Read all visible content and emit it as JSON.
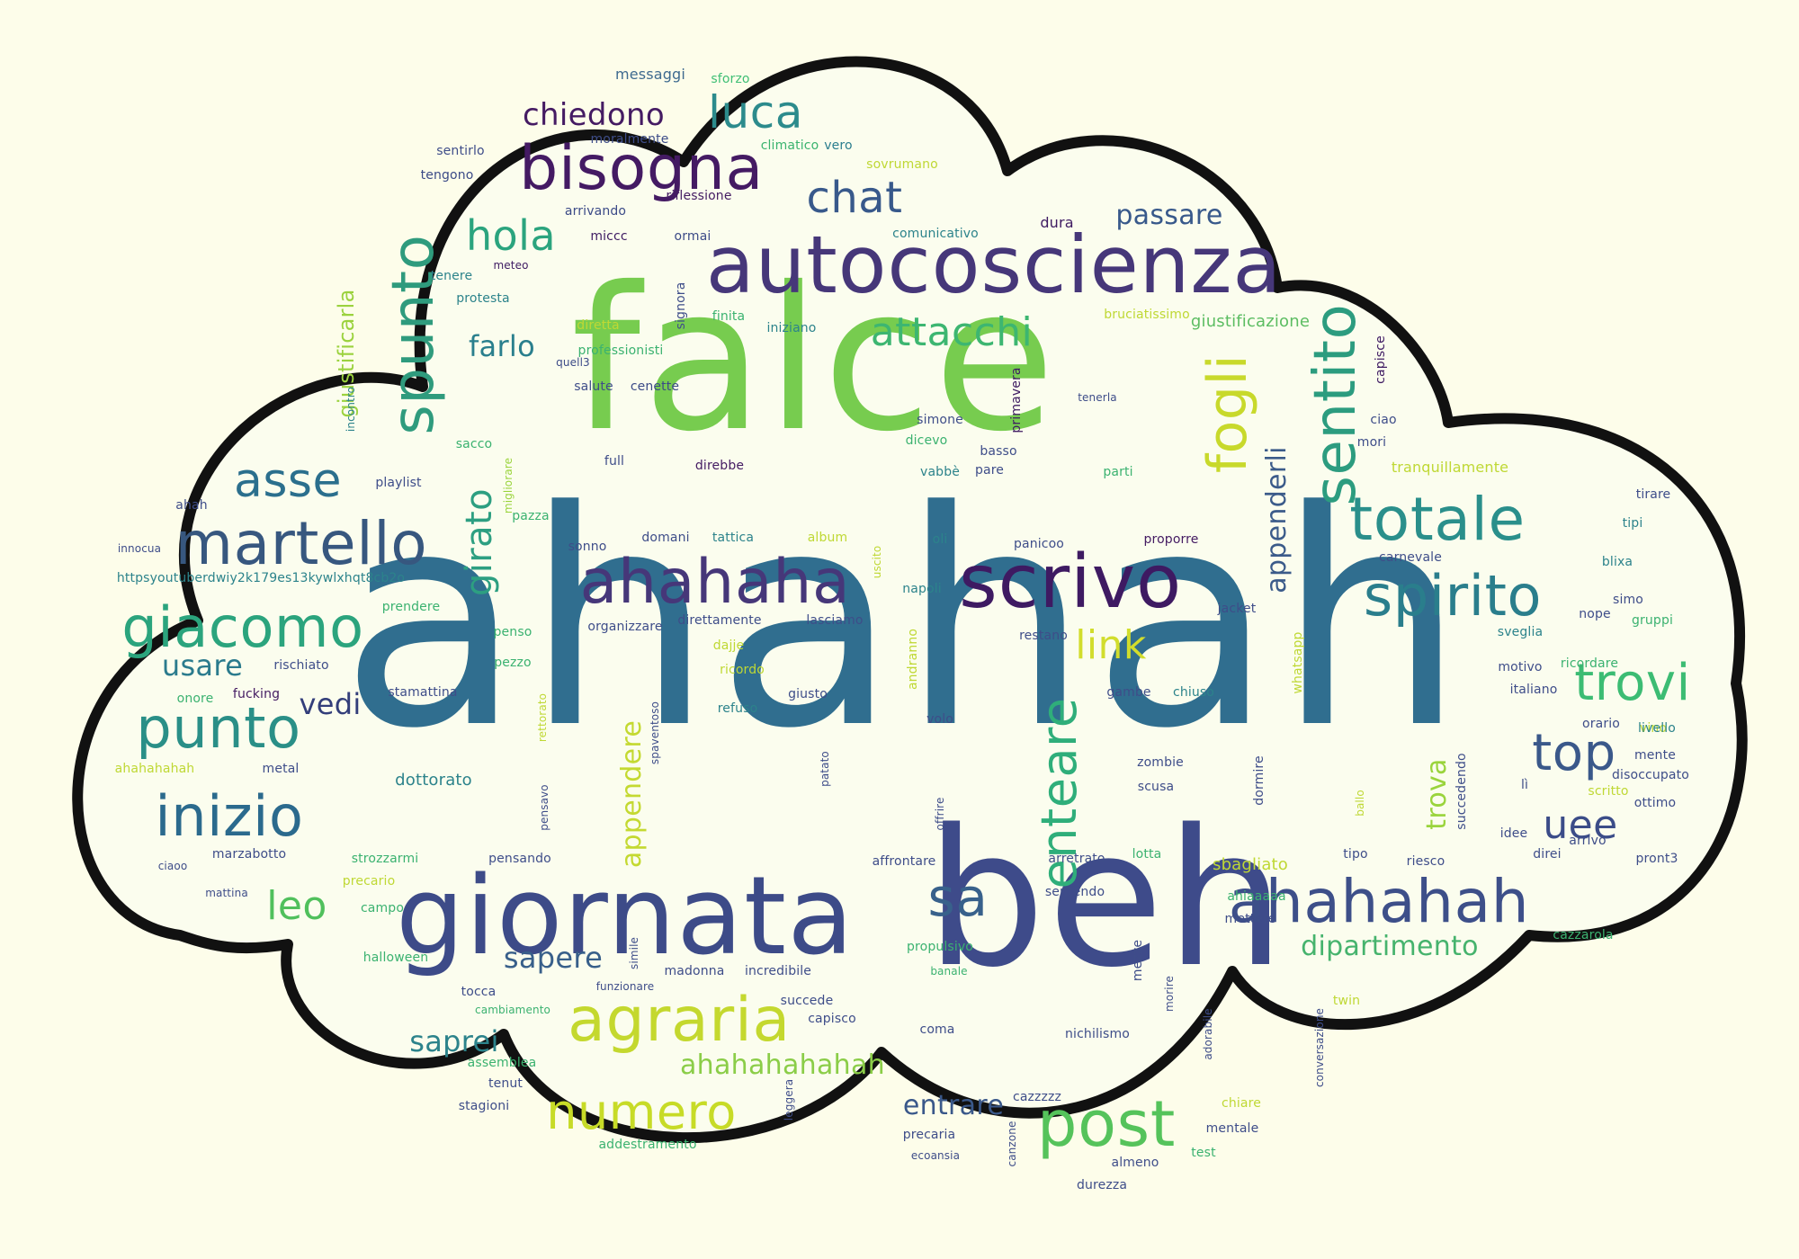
{
  "colors": {
    "background": "#fdfdea",
    "cloud_fill": "#fbfdee",
    "cloud_stroke": "#111111"
  },
  "words": [
    {
      "t": "ahahah",
      "c": "#306e8f"
    },
    {
      "t": "falce",
      "c": "#77cc4f"
    },
    {
      "t": "beh",
      "c": "#3e4b8a"
    },
    {
      "t": "giornata",
      "c": "#3d4b88"
    },
    {
      "t": "autocoscienza",
      "c": "#463779"
    },
    {
      "t": "ahahaha",
      "c": "#463779"
    },
    {
      "t": "scrivo",
      "c": "#3e1a62"
    },
    {
      "t": "bisogna",
      "c": "#441a63"
    },
    {
      "t": "martello",
      "c": "#37577f"
    },
    {
      "t": "giacomo",
      "c": "#2ba47d"
    },
    {
      "t": "agraria",
      "c": "#c4d82e"
    },
    {
      "t": "ahahahah",
      "c": "#3d4f89"
    },
    {
      "t": "spirito",
      "c": "#2a7e8c"
    },
    {
      "t": "totale",
      "c": "#2a8f8b"
    },
    {
      "t": "sentito",
      "c": "#2c9c7f"
    },
    {
      "t": "spunto",
      "c": "#2f9b7d"
    },
    {
      "t": "punto",
      "c": "#2a8f87"
    },
    {
      "t": "inizio",
      "c": "#2b6a8d"
    },
    {
      "t": "post",
      "c": "#55c35b"
    },
    {
      "t": "numero",
      "c": "#c7db27"
    },
    {
      "t": "trovi",
      "c": "#3cbc73"
    },
    {
      "t": "top",
      "c": "#3a588a"
    },
    {
      "t": "sa",
      "c": "#38618b"
    },
    {
      "t": "fogli",
      "c": "#c8d92b"
    },
    {
      "t": "luca",
      "c": "#2c8b8c"
    },
    {
      "t": "chat",
      "c": "#38598b"
    },
    {
      "t": "hola",
      "c": "#2ba47e"
    },
    {
      "t": "attacchi",
      "c": "#3db671"
    },
    {
      "t": "chiedono",
      "c": "#451b63"
    },
    {
      "t": "asse",
      "c": "#2b6f8d"
    },
    {
      "t": "enteare",
      "c": "#2fae7a"
    },
    {
      "t": "girato",
      "c": "#2d9f81"
    },
    {
      "t": "link",
      "c": "#d2dd2c"
    },
    {
      "t": "leo",
      "c": "#50c05c"
    },
    {
      "t": "uee",
      "c": "#3b4c88"
    },
    {
      "t": "ahahahahahah",
      "c": "#8bcd48"
    },
    {
      "t": "dipartimento",
      "c": "#46b36d"
    },
    {
      "t": "sapere",
      "c": "#385f8a"
    },
    {
      "t": "saprei",
      "c": "#2c838b"
    },
    {
      "t": "usare",
      "c": "#2b7b8d"
    },
    {
      "t": "vedi",
      "c": "#333e7a"
    },
    {
      "t": "passare",
      "c": "#38598b"
    },
    {
      "t": "farlo",
      "c": "#2a7f8d"
    },
    {
      "t": "entrare",
      "c": "#3a588a"
    },
    {
      "t": "appenderli",
      "c": "#3b5b8a"
    },
    {
      "t": "appendere",
      "c": "#c4d931"
    },
    {
      "t": "trova",
      "c": "#9ad43c"
    },
    {
      "t": "giustificarla",
      "c": "#9bd23e"
    },
    {
      "t": "giustificazione",
      "c": "#5cbd62"
    },
    {
      "t": "messaggi",
      "c": "#3e6a8f"
    },
    {
      "t": "sforzo",
      "c": "#3fbf75"
    },
    {
      "t": "moralmente",
      "c": "#3e4d89"
    },
    {
      "t": "sentirlo",
      "c": "#3e4d89"
    },
    {
      "t": "climatico",
      "c": "#3ab36e"
    },
    {
      "t": "vero",
      "c": "#2b7e8e"
    },
    {
      "t": "sovrumano",
      "c": "#bfd834"
    },
    {
      "t": "tengono",
      "c": "#3b4a87"
    },
    {
      "t": "arrivando",
      "c": "#3b4a87"
    },
    {
      "t": "riflessione",
      "c": "#441b62"
    },
    {
      "t": "miccc",
      "c": "#3e1a62"
    },
    {
      "t": "ormai",
      "c": "#3b4a87"
    },
    {
      "t": "comunicativo",
      "c": "#2c838b"
    },
    {
      "t": "dura",
      "c": "#3e1a62"
    },
    {
      "t": "meteo",
      "c": "#3e1a62"
    },
    {
      "t": "tenere",
      "c": "#2c838b"
    },
    {
      "t": "signora",
      "c": "#3e4d89"
    },
    {
      "t": "protesta",
      "c": "#2c838b"
    },
    {
      "t": "diretta",
      "c": "#bfd834"
    },
    {
      "t": "finita",
      "c": "#3bb270"
    },
    {
      "t": "iniziano",
      "c": "#2c838b"
    },
    {
      "t": "bruciatissimo",
      "c": "#bfd834"
    },
    {
      "t": "professionisti",
      "c": "#3bb270"
    },
    {
      "t": "quell3",
      "c": "#3b4a87"
    },
    {
      "t": "salute",
      "c": "#3e4d89"
    },
    {
      "t": "cenette",
      "c": "#3b4a87"
    },
    {
      "t": "primavera",
      "c": "#3e1a62"
    },
    {
      "t": "simone",
      "c": "#3e4d89"
    },
    {
      "t": "tenerla",
      "c": "#3e4d89"
    },
    {
      "t": "capisce",
      "c": "#3e1a62"
    },
    {
      "t": "incontro",
      "c": "#2c838b"
    },
    {
      "t": "sacco",
      "c": "#3bb270"
    },
    {
      "t": "migliorare",
      "c": "#9ad43c"
    },
    {
      "t": "dicevo",
      "c": "#3bb270"
    },
    {
      "t": "basso",
      "c": "#3e4d89"
    },
    {
      "t": "ciao",
      "c": "#3e4d89"
    },
    {
      "t": "mori",
      "c": "#3e4d89"
    },
    {
      "t": "playlist",
      "c": "#3e4d89"
    },
    {
      "t": "full",
      "c": "#3e4d89"
    },
    {
      "t": "direbbe",
      "c": "#441b62"
    },
    {
      "t": "vabbè",
      "c": "#2c838b"
    },
    {
      "t": "pare",
      "c": "#3e4d89"
    },
    {
      "t": "parti",
      "c": "#3bb270"
    },
    {
      "t": "tranquillamente",
      "c": "#bfd834"
    },
    {
      "t": "ahah",
      "c": "#3e4d89"
    },
    {
      "t": "pazza",
      "c": "#3bb270"
    },
    {
      "t": "tirare",
      "c": "#3e4d89"
    },
    {
      "t": "tipi",
      "c": "#2c838b"
    },
    {
      "t": "innocua",
      "c": "#3e4d89"
    },
    {
      "t": "sonno",
      "c": "#3e4d89"
    },
    {
      "t": "domani",
      "c": "#3e4d89"
    },
    {
      "t": "tattica",
      "c": "#2c838b"
    },
    {
      "t": "album",
      "c": "#bfd834"
    },
    {
      "t": "oli",
      "c": "#2c838b"
    },
    {
      "t": "panicoo",
      "c": "#3e4d89"
    },
    {
      "t": "proporre",
      "c": "#441b62"
    },
    {
      "t": "carnevale",
      "c": "#3e4d89"
    },
    {
      "t": "blixa",
      "c": "#2c838b"
    },
    {
      "t": "httpsyoutuberdwiy2k179es13kywlxhqt8cb2o",
      "c": "#2c838b"
    },
    {
      "t": "uscito",
      "c": "#bfd834"
    },
    {
      "t": "napoli",
      "c": "#2c838b"
    },
    {
      "t": "prendere",
      "c": "#3bb270"
    },
    {
      "t": "jacket",
      "c": "#3e4d89"
    },
    {
      "t": "simo",
      "c": "#3e4d89"
    },
    {
      "t": "nope",
      "c": "#3e4d89"
    },
    {
      "t": "gruppi",
      "c": "#3bb270"
    },
    {
      "t": "organizzare",
      "c": "#3e4d89"
    },
    {
      "t": "direttamente",
      "c": "#3e4d89"
    },
    {
      "t": "lasciamo",
      "c": "#3e4d89"
    },
    {
      "t": "andranno",
      "c": "#bfd834"
    },
    {
      "t": "restano",
      "c": "#3e4d89"
    },
    {
      "t": "whatsapp",
      "c": "#bfd834"
    },
    {
      "t": "sveglia",
      "c": "#2c838b"
    },
    {
      "t": "penso",
      "c": "#3bb270"
    },
    {
      "t": "dajje",
      "c": "#bfd834"
    },
    {
      "t": "rischiato",
      "c": "#3e4d89"
    },
    {
      "t": "motivo",
      "c": "#3e4d89"
    },
    {
      "t": "pezzo",
      "c": "#3bb270"
    },
    {
      "t": "ricordo",
      "c": "#bfd834"
    },
    {
      "t": "italiano",
      "c": "#3e4d89"
    },
    {
      "t": "fucking",
      "c": "#441b62"
    },
    {
      "t": "stamattina",
      "c": "#3e4d89"
    },
    {
      "t": "onore",
      "c": "#3bb270"
    },
    {
      "t": "refuso",
      "c": "#2c838b"
    },
    {
      "t": "giusto",
      "c": "#3e4d89"
    },
    {
      "t": "gambe",
      "c": "#3e4d89"
    },
    {
      "t": "chiuso",
      "c": "#2c838b"
    },
    {
      "t": "rettorato",
      "c": "#bfd834"
    },
    {
      "t": "spaventoso",
      "c": "#3e4d89"
    },
    {
      "t": "volo",
      "c": "#3e4d89"
    },
    {
      "t": "vino",
      "c": "#bfd834"
    },
    {
      "t": "orario",
      "c": "#3e4d89"
    },
    {
      "t": "livello",
      "c": "#2c838b"
    },
    {
      "t": "ahahahahah",
      "c": "#bfd834"
    },
    {
      "t": "metal",
      "c": "#3e4d89"
    },
    {
      "t": "zombie",
      "c": "#3e4d89"
    },
    {
      "t": "mente",
      "c": "#3e4d89"
    },
    {
      "t": "disoccupato",
      "c": "#3e4d89"
    },
    {
      "t": "dottorato",
      "c": "#2c838b"
    },
    {
      "t": "patato",
      "c": "#3e4d89"
    },
    {
      "t": "scusa",
      "c": "#3e4d89"
    },
    {
      "t": "dormire",
      "c": "#3e4d89"
    },
    {
      "t": "succedendo",
      "c": "#3e4d89"
    },
    {
      "t": "lì",
      "c": "#3e4d89"
    },
    {
      "t": "scritto",
      "c": "#bfd834"
    },
    {
      "t": "ottimo",
      "c": "#3e4d89"
    },
    {
      "t": "pensavo",
      "c": "#3e4d89"
    },
    {
      "t": "offrire",
      "c": "#3e4d89"
    },
    {
      "t": "ballo",
      "c": "#bfd834"
    },
    {
      "t": "idee",
      "c": "#3e4d89"
    },
    {
      "t": "arrivo",
      "c": "#3e4d89"
    },
    {
      "t": "marzabotto",
      "c": "#3e4d89"
    },
    {
      "t": "ciaoo",
      "c": "#3e4d89"
    },
    {
      "t": "strozzarmi",
      "c": "#3bb270"
    },
    {
      "t": "pensando",
      "c": "#3e4d89"
    },
    {
      "t": "affrontare",
      "c": "#3e4d89"
    },
    {
      "t": "arretrato",
      "c": "#3e4d89"
    },
    {
      "t": "lotta",
      "c": "#3bb270"
    },
    {
      "t": "sbagliato",
      "c": "#bfd834"
    },
    {
      "t": "tipo",
      "c": "#3e4d89"
    },
    {
      "t": "riesco",
      "c": "#3e4d89"
    },
    {
      "t": "direi",
      "c": "#3e4d89"
    },
    {
      "t": "pront3",
      "c": "#3e4d89"
    },
    {
      "t": "mattina",
      "c": "#3e4d89"
    },
    {
      "t": "precario",
      "c": "#bfd834"
    },
    {
      "t": "campo",
      "c": "#3bb270"
    },
    {
      "t": "sentendo",
      "c": "#3e4d89"
    },
    {
      "t": "ahiaaaaa",
      "c": "#3bb270"
    },
    {
      "t": "mettere",
      "c": "#3e4d89"
    },
    {
      "t": "halloween",
      "c": "#3bb270"
    },
    {
      "t": "simile",
      "c": "#3e4d89"
    },
    {
      "t": "madonna",
      "c": "#3e4d89"
    },
    {
      "t": "incredibile",
      "c": "#3e4d89"
    },
    {
      "t": "propulsivo",
      "c": "#3bb270"
    },
    {
      "t": "mezze",
      "c": "#3e4d89"
    },
    {
      "t": "cazzarola",
      "c": "#3bb270"
    },
    {
      "t": "funzionare",
      "c": "#3e4d89"
    },
    {
      "t": "tocca",
      "c": "#3e4d89"
    },
    {
      "t": "succede",
      "c": "#3e4d89"
    },
    {
      "t": "banale",
      "c": "#3bb270"
    },
    {
      "t": "morire",
      "c": "#3e4d89"
    },
    {
      "t": "capisco",
      "c": "#3e4d89"
    },
    {
      "t": "cambiamento",
      "c": "#3bb270"
    },
    {
      "t": "twin",
      "c": "#bfd834"
    },
    {
      "t": "assemblea",
      "c": "#3bb270"
    },
    {
      "t": "coma",
      "c": "#3e4d89"
    },
    {
      "t": "nichilismo",
      "c": "#3e4d89"
    },
    {
      "t": "adorabile",
      "c": "#3e4d89"
    },
    {
      "t": "conversazione",
      "c": "#3e4d89"
    },
    {
      "t": "tenut",
      "c": "#3e4d89"
    },
    {
      "t": "leggera",
      "c": "#3e4d89"
    },
    {
      "t": "cazzzzz",
      "c": "#3e4d89"
    },
    {
      "t": "chiare",
      "c": "#bfd834"
    },
    {
      "t": "stagioni",
      "c": "#3e4d89"
    },
    {
      "t": "mentale",
      "c": "#3e4d89"
    },
    {
      "t": "canzone",
      "c": "#3e4d89"
    },
    {
      "t": "precaria",
      "c": "#3e4d89"
    },
    {
      "t": "test",
      "c": "#3bb270"
    },
    {
      "t": "addestramento",
      "c": "#3bb270"
    },
    {
      "t": "ecoansia",
      "c": "#3e4d89"
    },
    {
      "t": "almeno",
      "c": "#3e4d89"
    },
    {
      "t": "durezza",
      "c": "#3e4d89"
    },
    {
      "t": "ricordare",
      "c": "#3bb270"
    }
  ]
}
